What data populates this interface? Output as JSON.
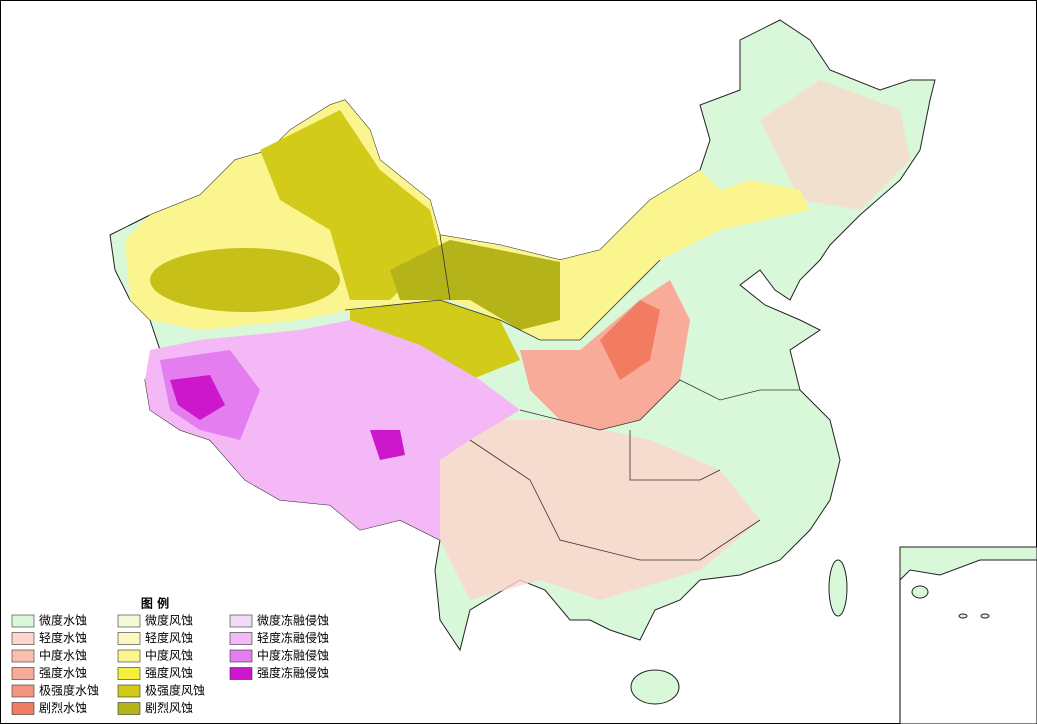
{
  "legend": {
    "title": "图 例",
    "items": [
      {
        "label": "微度水蚀",
        "color": "#d9f7d9"
      },
      {
        "label": "轻度水蚀",
        "color": "#fcd5cb"
      },
      {
        "label": "中度水蚀",
        "color": "#fbbfae"
      },
      {
        "label": "强度水蚀",
        "color": "#f8ab98"
      },
      {
        "label": "极强度水蚀",
        "color": "#f6957f"
      },
      {
        "label": "剧烈水蚀",
        "color": "#f27c62"
      },
      {
        "label": "微度风蚀",
        "color": "#f1fbd6"
      },
      {
        "label": "轻度风蚀",
        "color": "#fcf9c0"
      },
      {
        "label": "中度风蚀",
        "color": "#faf58f"
      },
      {
        "label": "强度风蚀",
        "color": "#f5ef3d"
      },
      {
        "label": "极强度风蚀",
        "color": "#d3cb1a"
      },
      {
        "label": "剧烈风蚀",
        "color": "#b4b31a"
      },
      {
        "label": "微度冻融侵蚀",
        "color": "#f1dbf7"
      },
      {
        "label": "轻度冻融侵蚀",
        "color": "#f3b8f5"
      },
      {
        "label": "中度冻融侵蚀",
        "color": "#e47df0"
      },
      {
        "label": "强度冻融侵蚀",
        "color": "#cc17cc"
      }
    ]
  }
}
